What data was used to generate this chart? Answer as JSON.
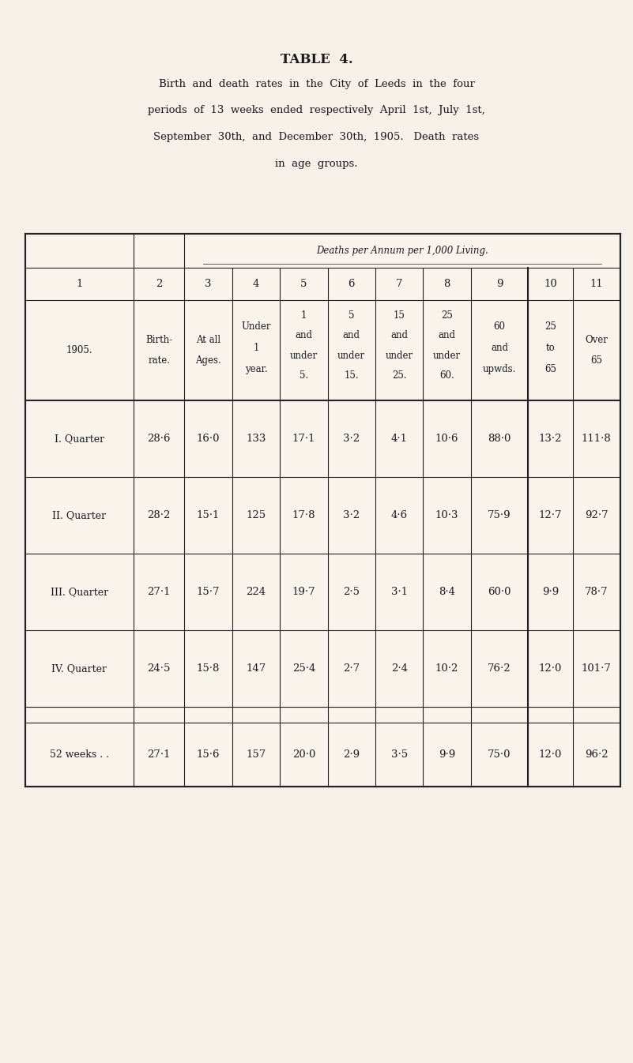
{
  "title": "TABLE  4.",
  "subtitle_lines": [
    "Birth  and  death  rates  in  the  City  of  Leeds  in  the  four",
    "periods  of  13  weeks  ended  respectively  April  1st,  July  1st,",
    "September  30th,  and  December  30th,  1905.   Death  rates",
    "in  age  groups."
  ],
  "col_numbers": [
    "1",
    "2",
    "3",
    "4",
    "5",
    "6",
    "7",
    "8",
    "9",
    "10",
    "11"
  ],
  "col_header_line1": [
    "",
    "Birth-",
    "At all",
    "Under",
    "1",
    "5",
    "15",
    "25",
    "60",
    "25",
    "Over"
  ],
  "col_header_line2": [
    "1905.",
    "rate.",
    "Ages.",
    "1",
    "and",
    "and",
    "and",
    "and",
    "and",
    "to",
    "65"
  ],
  "col_header_line3": [
    "",
    "",
    "",
    "year.",
    "under",
    "under",
    "under",
    "under",
    "upwds.",
    "65",
    ""
  ],
  "col_header_line4": [
    "",
    "",
    "",
    "",
    "5.",
    "15.",
    "25.",
    "60.",
    "",
    "",
    ""
  ],
  "deaths_header": "Deaths per Annum per 1,000 Living.",
  "rows": [
    [
      "I. Quarter",
      "28·6",
      "16·0",
      "133",
      "17·1",
      "3·2",
      "4·1",
      "10·6",
      "88·0",
      "13·2",
      "111·8"
    ],
    [
      "II. Quarter",
      "28·2",
      "15·1",
      "125",
      "17·8",
      "3·2",
      "4·6",
      "10·3",
      "75·9",
      "12·7",
      "92·7"
    ],
    [
      "III. Quarter",
      "27·1",
      "15·7",
      "224",
      "19·7",
      "2·5",
      "3·1",
      "8·4",
      "60·0",
      "9·9",
      "78·7"
    ],
    [
      "IV. Quarter",
      "24·5",
      "15·8",
      "147",
      "25·4",
      "2·7",
      "2·4",
      "10·2",
      "76·2",
      "12·0",
      "101·7"
    ]
  ],
  "summary_row": [
    "52 weeks . .",
    "27·1",
    "15·6",
    "157",
    "20·0",
    "2·9",
    "3·5",
    "9·9",
    "75·0",
    "12·0",
    "96·2"
  ],
  "bg_color": "#f5f0e8",
  "table_bg": "#f8f4ec",
  "line_color": "#222222",
  "text_color": "#1a1a1a"
}
